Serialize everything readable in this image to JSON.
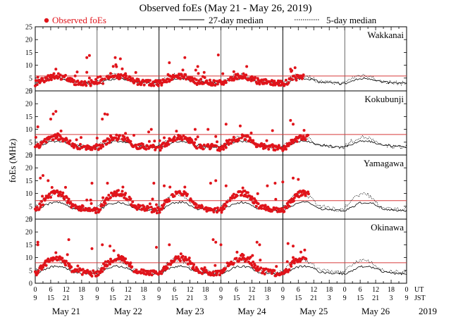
{
  "chart_data": {
    "type": "scatter",
    "title": "Observed foEs (May 21 - May 26, 2019)",
    "ylabel": "foEs (MHz)",
    "ylim": [
      0,
      25
    ],
    "yticks": [
      "0",
      "5",
      "10",
      "15",
      "20",
      "25"
    ],
    "legend": {
      "observed": "Observed foEs",
      "median27": "27-day median",
      "median5": "5-day median"
    },
    "x_range_hours": [
      0,
      144
    ],
    "ut_label": "UT",
    "jst_label": "JST",
    "year": "2019",
    "ut_ticks": [
      "0",
      "6",
      "12",
      "18"
    ],
    "jst_ticks": [
      "9",
      "15",
      "21",
      "3"
    ],
    "days": [
      "May 21",
      "May 22",
      "May 23",
      "May 24",
      "May 25",
      "May 26"
    ],
    "colors": {
      "observed": "#e0141b",
      "threshold": "#d83a3a",
      "median": "#000000"
    },
    "stations": [
      {
        "name": "Wakkanai",
        "threshold": 5.8,
        "obs_end_hour": 104,
        "median27_base": 3.8,
        "median27_amp": 1.6,
        "median5_base": 4.4,
        "median5_amp": 2.6,
        "observed_base": 4.2,
        "observed_amp": 2.2,
        "spikes": [
          [
            8,
            8.5
          ],
          [
            20,
            13
          ],
          [
            21,
            13.8
          ],
          [
            31,
            13
          ],
          [
            33,
            12.5
          ],
          [
            52,
            11
          ],
          [
            58,
            13
          ],
          [
            63,
            9.5
          ],
          [
            71,
            14
          ],
          [
            77,
            7.5
          ],
          [
            82,
            9.5
          ],
          [
            99,
            8.5
          ]
        ]
      },
      {
        "name": "Kokubunji",
        "threshold": 8.0,
        "obs_end_hour": 106,
        "median27_base": 4.2,
        "median27_amp": 1.8,
        "median5_base": 4.8,
        "median5_amp": 3.2,
        "observed_base": 4.6,
        "observed_amp": 3.4,
        "spikes": [
          [
            1,
            11
          ],
          [
            6,
            14
          ],
          [
            7,
            16
          ],
          [
            8,
            17
          ],
          [
            26,
            14
          ],
          [
            27,
            16
          ],
          [
            28,
            15.8
          ],
          [
            44,
            9
          ],
          [
            45,
            10
          ],
          [
            62,
            10
          ],
          [
            67,
            10
          ],
          [
            74,
            12
          ],
          [
            92,
            9.5
          ],
          [
            99,
            13.5
          ],
          [
            100,
            12
          ]
        ]
      },
      {
        "name": "Yamagawa",
        "threshold": 7.2,
        "obs_end_hour": 106,
        "median27_base": 4.8,
        "median27_amp": 2.6,
        "median5_base": 6.5,
        "median5_amp": 5.0,
        "observed_base": 6.5,
        "observed_amp": 5.5,
        "spikes": [
          [
            2,
            16
          ],
          [
            3,
            17
          ],
          [
            5,
            15
          ],
          [
            22,
            14
          ],
          [
            28,
            14
          ],
          [
            34,
            12.5
          ],
          [
            46,
            14
          ],
          [
            50,
            13
          ],
          [
            58,
            12.5
          ],
          [
            68,
            14
          ],
          [
            70,
            15
          ],
          [
            74,
            13
          ],
          [
            90,
            13
          ],
          [
            93,
            14
          ],
          [
            96,
            14.5
          ],
          [
            100,
            16
          ],
          [
            102,
            15.5
          ]
        ]
      },
      {
        "name": "Okinawa",
        "threshold": 8.0,
        "obs_end_hour": 105,
        "median27_base": 5.0,
        "median27_amp": 2.4,
        "median5_base": 6.5,
        "median5_amp": 4.0,
        "observed_base": 6.5,
        "observed_amp": 5.0,
        "spikes": [
          [
            1,
            16
          ],
          [
            1,
            15
          ],
          [
            13,
            17
          ],
          [
            22,
            13.5
          ],
          [
            26,
            15
          ],
          [
            29,
            14.5
          ],
          [
            47,
            14
          ],
          [
            52,
            15
          ],
          [
            69,
            17
          ],
          [
            70,
            16
          ],
          [
            72,
            15
          ],
          [
            86,
            16
          ],
          [
            87,
            15
          ],
          [
            98,
            15.5
          ],
          [
            100,
            14.5
          ]
        ]
      }
    ]
  }
}
